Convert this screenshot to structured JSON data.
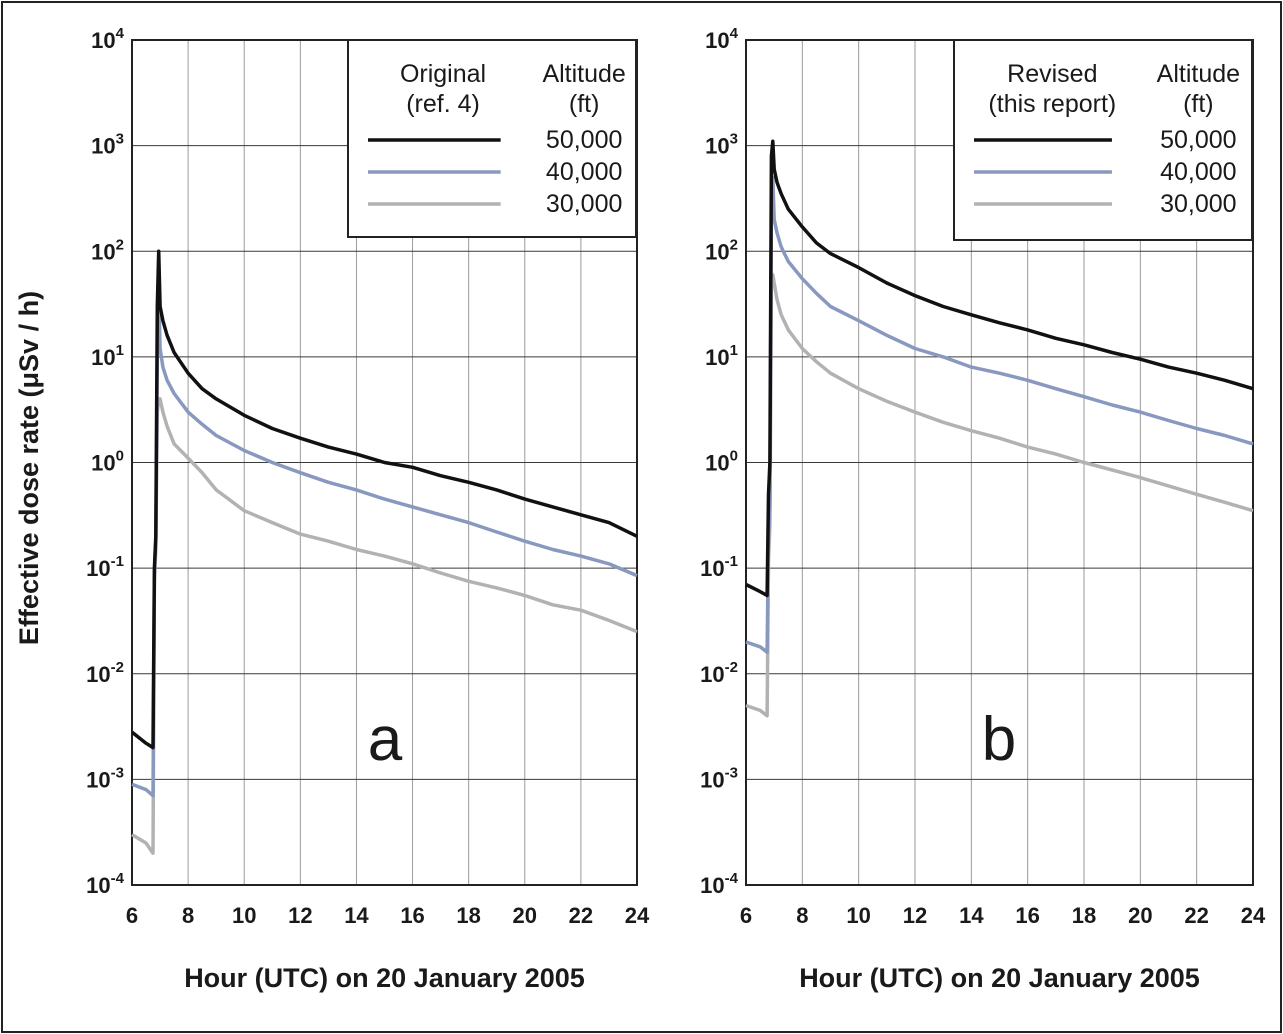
{
  "figure": {
    "ylabel": "Effective dose rate (μSv / h)"
  },
  "chart_data": [
    {
      "type": "line",
      "panel": "a",
      "xlabel": "Hour (UTC) on 20 January 2005",
      "ylabel": "Effective dose rate (μSv / h)",
      "xlim": [
        6,
        24
      ],
      "ylim": [
        0.0001,
        10000
      ],
      "yscale": "log",
      "grid": true,
      "xticks": [
        "6",
        "8",
        "10",
        "12",
        "14",
        "16",
        "18",
        "20",
        "22",
        "24"
      ],
      "yticks": [
        {
          "base": "10",
          "exp": "-4"
        },
        {
          "base": "10",
          "exp": "-3"
        },
        {
          "base": "10",
          "exp": "-2"
        },
        {
          "base": "10",
          "exp": "-1"
        },
        {
          "base": "10",
          "exp": "0"
        },
        {
          "base": "10",
          "exp": "1"
        },
        {
          "base": "10",
          "exp": "2"
        },
        {
          "base": "10",
          "exp": "3"
        },
        {
          "base": "10",
          "exp": "4"
        }
      ],
      "legend": {
        "placement": "top-right",
        "title_left": [
          "Original",
          "(ref. 4)"
        ],
        "title_right": [
          "Altitude",
          "(ft)"
        ]
      },
      "series": [
        {
          "name": "50,000",
          "color": "#111111",
          "x": [
            6.0,
            6.5,
            6.75,
            6.8,
            6.85,
            6.9,
            6.95,
            7.0,
            7.1,
            7.25,
            7.5,
            8.0,
            8.5,
            9.0,
            10.0,
            11.0,
            12.0,
            13.0,
            14.0,
            15.0,
            16.0,
            17.0,
            18.0,
            19.0,
            20.0,
            21.0,
            22.0,
            23.0,
            24.0
          ],
          "y": [
            0.0028,
            0.0022,
            0.002,
            0.1,
            0.2,
            30,
            100,
            30,
            22,
            16,
            11,
            7,
            5,
            4,
            2.8,
            2.1,
            1.7,
            1.4,
            1.2,
            1.0,
            0.9,
            0.75,
            0.65,
            0.55,
            0.45,
            0.38,
            0.32,
            0.27,
            0.2
          ]
        },
        {
          "name": "40,000",
          "color": "#8898bf",
          "x": [
            6.0,
            6.5,
            6.75,
            6.8,
            6.85,
            6.9,
            6.95,
            7.0,
            7.1,
            7.25,
            7.5,
            8.0,
            8.5,
            9.0,
            10.0,
            11.0,
            12.0,
            13.0,
            14.0,
            15.0,
            16.0,
            17.0,
            18.0,
            19.0,
            20.0,
            21.0,
            22.0,
            23.0,
            24.0
          ],
          "y": [
            0.0009,
            0.0008,
            0.0007,
            0.09,
            0.18,
            10,
            40,
            12,
            8,
            6,
            4.5,
            3,
            2.3,
            1.8,
            1.3,
            1.0,
            0.8,
            0.65,
            0.55,
            0.45,
            0.38,
            0.32,
            0.27,
            0.22,
            0.18,
            0.15,
            0.13,
            0.11,
            0.085
          ]
        },
        {
          "name": "30,000",
          "color": "#b2b2b2",
          "x": [
            6.0,
            6.5,
            6.75,
            6.8,
            6.85,
            6.9,
            6.95,
            7.0,
            7.1,
            7.25,
            7.5,
            8.0,
            8.5,
            9.0,
            10.0,
            11.0,
            12.0,
            13.0,
            14.0,
            15.0,
            16.0,
            17.0,
            18.0,
            19.0,
            20.0,
            21.0,
            22.0,
            23.0,
            24.0
          ],
          "y": [
            0.0003,
            0.00025,
            0.0002,
            0.08,
            0.15,
            3,
            4,
            4,
            3,
            2.2,
            1.5,
            1.1,
            0.8,
            0.55,
            0.35,
            0.27,
            0.21,
            0.18,
            0.15,
            0.13,
            0.11,
            0.09,
            0.075,
            0.065,
            0.055,
            0.045,
            0.04,
            0.032,
            0.025
          ]
        }
      ]
    },
    {
      "type": "line",
      "panel": "b",
      "xlabel": "Hour (UTC) on 20 January 2005",
      "ylabel": "",
      "xlim": [
        6,
        24
      ],
      "ylim": [
        0.0001,
        10000
      ],
      "yscale": "log",
      "grid": true,
      "xticks": [
        "6",
        "8",
        "10",
        "12",
        "14",
        "16",
        "18",
        "20",
        "22",
        "24"
      ],
      "yticks": [
        {
          "base": "10",
          "exp": "-4"
        },
        {
          "base": "10",
          "exp": "-3"
        },
        {
          "base": "10",
          "exp": "-2"
        },
        {
          "base": "10",
          "exp": "-1"
        },
        {
          "base": "10",
          "exp": "0"
        },
        {
          "base": "10",
          "exp": "1"
        },
        {
          "base": "10",
          "exp": "2"
        },
        {
          "base": "10",
          "exp": "3"
        },
        {
          "base": "10",
          "exp": "4"
        }
      ],
      "legend": {
        "placement": "top-right",
        "title_left": [
          "Revised",
          "(this report)"
        ],
        "title_right": [
          "Altitude",
          "(ft)"
        ]
      },
      "series": [
        {
          "name": "50,000",
          "color": "#111111",
          "x": [
            6.0,
            6.5,
            6.75,
            6.8,
            6.85,
            6.9,
            6.95,
            7.0,
            7.1,
            7.25,
            7.5,
            8.0,
            8.5,
            9.0,
            10.0,
            11.0,
            12.0,
            13.0,
            14.0,
            15.0,
            16.0,
            17.0,
            18.0,
            19.0,
            20.0,
            21.0,
            22.0,
            23.0,
            24.0
          ],
          "y": [
            0.07,
            0.06,
            0.055,
            0.5,
            1.0,
            800,
            1100,
            600,
            450,
            350,
            250,
            170,
            120,
            95,
            70,
            50,
            38,
            30,
            25,
            21,
            18,
            15,
            13,
            11,
            9.5,
            8,
            7,
            6,
            5
          ]
        },
        {
          "name": "40,000",
          "color": "#8898bf",
          "x": [
            6.0,
            6.5,
            6.75,
            6.8,
            6.85,
            6.9,
            6.95,
            7.0,
            7.1,
            7.25,
            7.5,
            8.0,
            8.5,
            9.0,
            10.0,
            11.0,
            12.0,
            13.0,
            14.0,
            15.0,
            16.0,
            17.0,
            18.0,
            19.0,
            20.0,
            21.0,
            22.0,
            23.0,
            24.0
          ],
          "y": [
            0.02,
            0.018,
            0.016,
            0.2,
            0.4,
            300,
            500,
            200,
            150,
            110,
            80,
            55,
            40,
            30,
            22,
            16,
            12,
            10,
            8,
            7,
            6,
            5,
            4.2,
            3.5,
            3,
            2.5,
            2.1,
            1.8,
            1.5
          ]
        },
        {
          "name": "30,000",
          "color": "#b2b2b2",
          "x": [
            6.0,
            6.5,
            6.75,
            6.8,
            6.85,
            6.9,
            6.95,
            7.0,
            7.1,
            7.25,
            7.5,
            8.0,
            8.5,
            9.0,
            10.0,
            11.0,
            12.0,
            13.0,
            14.0,
            15.0,
            16.0,
            17.0,
            18.0,
            19.0,
            20.0,
            21.0,
            22.0,
            23.0,
            24.0
          ],
          "y": [
            0.005,
            0.0045,
            0.004,
            0.12,
            0.25,
            50,
            60,
            50,
            35,
            25,
            18,
            12,
            9,
            7,
            5,
            3.8,
            3,
            2.4,
            2,
            1.7,
            1.4,
            1.2,
            1.0,
            0.85,
            0.72,
            0.6,
            0.5,
            0.42,
            0.35
          ]
        }
      ]
    }
  ]
}
